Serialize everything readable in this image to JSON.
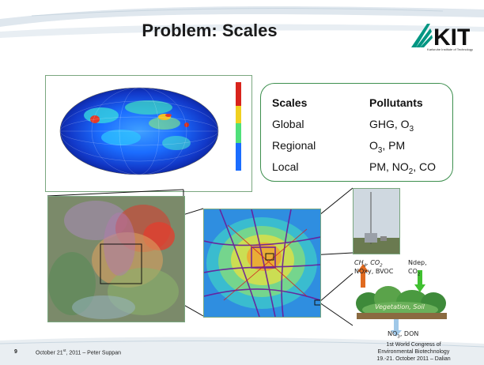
{
  "slide": {
    "title": "Problem: Scales",
    "logo_text": "KIT",
    "logo_subtitle": "Karlsruhe Institute of Technology",
    "colors": {
      "green_border": "#3d8f4e",
      "panel_border": "#7aa77f"
    }
  },
  "table": {
    "header_scale": "Scales",
    "header_pollutant": "Pollutants",
    "rows": [
      {
        "scale": "Global",
        "pollutant_main": "GHG, O",
        "pollutant_sub": "3",
        "pollutant_tail": ""
      },
      {
        "scale": "Regional",
        "pollutant_main": "O",
        "pollutant_sub": "3",
        "pollutant_tail": ", PM"
      },
      {
        "scale": "Local",
        "pollutant_main": "PM, NO",
        "pollutant_sub": "2",
        "pollutant_tail": ", CO"
      }
    ]
  },
  "diagram": {
    "ch4": "CH",
    "ch4_sub": "4",
    "co2a": ", CO",
    "co2a_sub": "2",
    "noxy": "NOxy, BVOC",
    "ndep": "Ndep,",
    "co2b": "CO",
    "co2b_sub": "2",
    "veg": "Vegetation, Soil",
    "no3": "NO",
    "no3_sub": "3",
    "don": ", DON"
  },
  "footer": {
    "page_number": "9",
    "date_author_pre": "October 21",
    "date_author_sup": "st",
    "date_author_post": ", 2011 – Peter Suppan",
    "conf_line1_sup": "1st",
    "conf_line1": " World Congress of",
    "conf_line2": "Environmental Biotechnology",
    "conf_line3": "19.-21. October 2011 – Dalian"
  }
}
